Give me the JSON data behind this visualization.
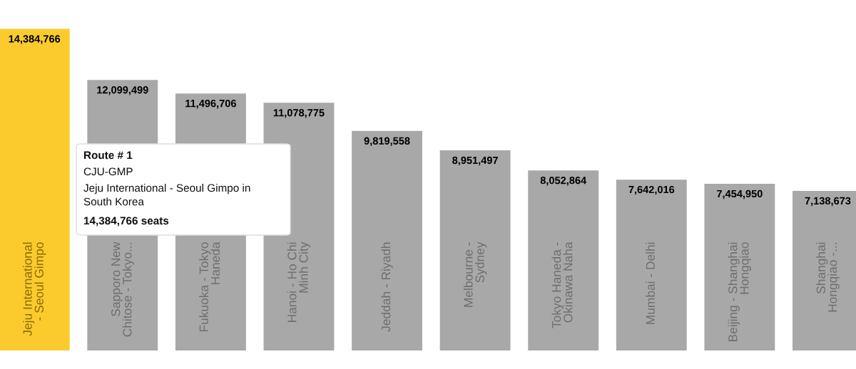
{
  "chart_data": {
    "type": "bar",
    "categories": [
      "Jeju International\n- Seoul Gimpo",
      "Sapporo New\nChitose - Tokyo...",
      "Fukuoka - Tokyo\nHaneda",
      "Hanoi - Ho Chi\nMinh City",
      "Jeddah - Riyadh",
      "Melbourne -\nSydney",
      "Tokyo Haneda -\nOkinawa Naha",
      "Mumbai - Delhi",
      "Beijing - Shanghai\nHongqiao",
      "Shanghai\nHongqiao -..."
    ],
    "values": [
      14384766,
      12099499,
      11496706,
      11078775,
      9819558,
      8951497,
      8052864,
      7642016,
      7454950,
      7138673
    ],
    "colors": [
      "#fbcb2e",
      "#a8a8a8",
      "#a8a8a8",
      "#a8a8a8",
      "#a8a8a8",
      "#a8a8a8",
      "#a8a8a8",
      "#a8a8a8",
      "#a8a8a8",
      "#a8a8a8"
    ],
    "value_labels": [
      "14,384,766",
      "12,099,499",
      "11,496,706",
      "11,078,775",
      "9,819,558",
      "8,951,497",
      "8,052,864",
      "7,642,016",
      "7,454,950",
      "7,138,673"
    ],
    "tick_labels": false,
    "legend": false,
    "annotations": [
      "Route # 1",
      "CJU-GMP",
      "Jeju International - Seoul Gimpo in\nSouth Korea",
      "14,384,766 seats"
    ]
  }
}
